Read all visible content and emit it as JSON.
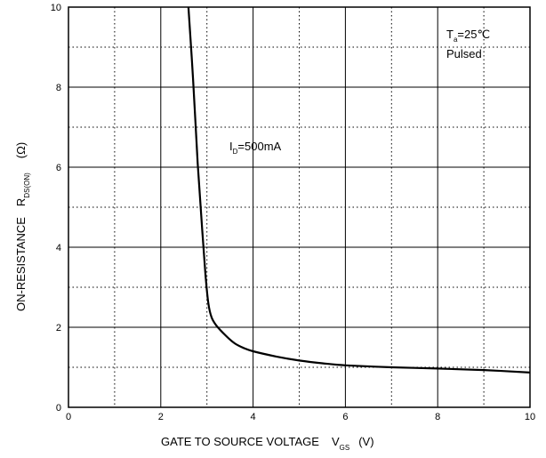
{
  "chart_data": {
    "type": "line",
    "xlabel": "GATE TO SOURCE VOLTAGE",
    "xlabel_symbol": "V",
    "xlabel_symbol_sub": "GS",
    "xlabel_unit": "(V)",
    "ylabel": "ON-RESISTANCE",
    "ylabel_symbol": "R",
    "ylabel_symbol_sub": "DS(ON)",
    "ylabel_unit": "(Ω)",
    "xlim": [
      0,
      10
    ],
    "ylim": [
      0,
      10
    ],
    "x_ticks": [
      0,
      2,
      4,
      6,
      8,
      10
    ],
    "y_ticks": [
      0,
      2,
      4,
      6,
      8,
      10
    ],
    "grid": "major solid, minor dotted",
    "annotations": {
      "ta_symbol": "T",
      "ta_sub": "a",
      "ta_value": "=25℃",
      "pulsed": "Pulsed",
      "id_symbol": "I",
      "id_sub": "D",
      "id_value": "=500mA"
    },
    "series": [
      {
        "x": [
          2.6,
          2.7,
          2.8,
          2.9,
          2.97,
          3.03,
          3.1,
          3.2,
          3.4,
          3.6,
          3.8,
          4.0,
          4.5,
          5.0,
          5.5,
          6.0,
          7.0,
          8.0,
          9.0,
          10.0
        ],
        "values": [
          10.0,
          8.2,
          6.1,
          4.4,
          3.3,
          2.6,
          2.25,
          2.05,
          1.8,
          1.6,
          1.48,
          1.4,
          1.27,
          1.17,
          1.1,
          1.05,
          1.0,
          0.97,
          0.93,
          0.87
        ]
      }
    ]
  }
}
